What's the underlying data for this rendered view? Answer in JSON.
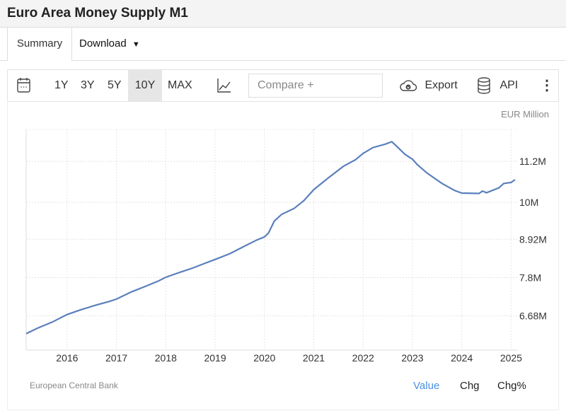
{
  "header": {
    "title": "Euro Area Money Supply M1"
  },
  "tabs": {
    "summary": "Summary",
    "download": "Download"
  },
  "toolbar": {
    "ranges": [
      "1Y",
      "3Y",
      "5Y",
      "10Y",
      "MAX"
    ],
    "active_range": "10Y",
    "compare_placeholder": "Compare +",
    "export": "Export",
    "api": "API"
  },
  "chart_meta": {
    "unit": "EUR Million",
    "source": "European Central Bank",
    "modes": [
      "Value",
      "Chg",
      "Chg%"
    ],
    "active_mode": "Value",
    "line_color": "#5b7fbd",
    "active_color": "#4a90e2"
  },
  "chart_data": {
    "type": "line",
    "title": "Euro Area Money Supply M1",
    "xlabel": "",
    "ylabel": "EUR Million",
    "x_ticks": [
      2016,
      2017,
      2018,
      2019,
      2020,
      2021,
      2022,
      2023,
      2024,
      2025
    ],
    "x_tick_labels": [
      "2016",
      "2017",
      "2018",
      "2019",
      "2020",
      "2021",
      "2022",
      "2023",
      "2024",
      "2025"
    ],
    "y_ticks": [
      6.68,
      7.8,
      8.92,
      10,
      11.2
    ],
    "y_tick_labels": [
      "6.68M",
      "7.8M",
      "8.92M",
      "10M",
      "11.2M"
    ],
    "xlim": [
      2015.17,
      2025.08
    ],
    "ylim": [
      5.68,
      12.13
    ],
    "grid": true,
    "series": [
      {
        "name": "Value",
        "x": [
          2015.17,
          2015.4,
          2015.7,
          2016.0,
          2016.3,
          2016.6,
          2016.85,
          2017.0,
          2017.3,
          2017.6,
          2017.85,
          2018.0,
          2018.3,
          2018.55,
          2018.8,
          2019.0,
          2019.3,
          2019.6,
          2019.85,
          2020.0,
          2020.08,
          2020.2,
          2020.35,
          2020.6,
          2020.8,
          2021.0,
          2021.3,
          2021.6,
          2021.85,
          2022.0,
          2022.2,
          2022.45,
          2022.58,
          2022.65,
          2022.85,
          2023.0,
          2023.1,
          2023.3,
          2023.6,
          2023.85,
          2024.0,
          2024.35,
          2024.42,
          2024.5,
          2024.75,
          2024.85,
          2025.0,
          2025.08
        ],
        "y": [
          6.16,
          6.32,
          6.5,
          6.72,
          6.87,
          7.0,
          7.1,
          7.17,
          7.38,
          7.55,
          7.7,
          7.81,
          7.96,
          8.08,
          8.22,
          8.33,
          8.5,
          8.72,
          8.9,
          8.99,
          9.1,
          9.45,
          9.65,
          9.82,
          10.05,
          10.37,
          10.72,
          11.05,
          11.25,
          11.43,
          11.6,
          11.7,
          11.77,
          11.68,
          11.4,
          11.26,
          11.1,
          10.85,
          10.55,
          10.35,
          10.27,
          10.26,
          10.33,
          10.28,
          10.42,
          10.55,
          10.58,
          10.66
        ]
      }
    ]
  }
}
